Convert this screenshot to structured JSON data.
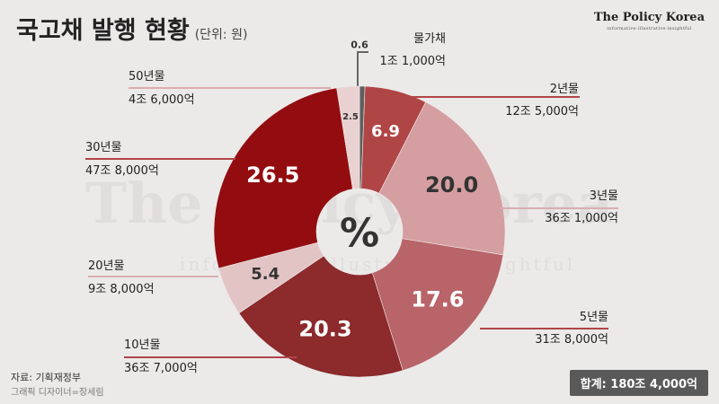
{
  "title": "국고채 발행 현황",
  "unit": "(단위: 원)",
  "brand": {
    "name": "The Policy Korea",
    "tagline": "informative·illustrative·insightful"
  },
  "watermark": {
    "name": "The Policy Korea",
    "tagline": "informative·illustrative·insightful"
  },
  "center_symbol": "%",
  "source": "자료: 기획재정부",
  "credit": "그래픽 디자이너=장세림",
  "total": "합계: 180조 4,000억",
  "colors": {
    "background": "#ece9e9",
    "slices": [
      "#5f5f5f",
      "#b04545",
      "#d59ea1",
      "#b86468",
      "#8c2a2c",
      "#e3c4c4",
      "#930d10",
      "#e9d1d1"
    ],
    "leader": "#b04548"
  },
  "chart_data": {
    "type": "pie",
    "donut": true,
    "categories": [
      "물가채",
      "2년물",
      "3년물",
      "5년물",
      "10년물",
      "20년물",
      "30년물",
      "50년물"
    ],
    "values": [
      0.6,
      6.9,
      20.0,
      17.6,
      20.3,
      5.4,
      26.5,
      2.5
    ],
    "value_labels": [
      "0.6",
      "6.9",
      "20.0",
      "17.6",
      "20.3",
      "5.4",
      "26.5",
      "2.5"
    ],
    "amounts": [
      "1조 1,000억",
      "12조 5,000억",
      "36조 1,000억",
      "31조 8,000억",
      "36조 7,000억",
      "9조 8,000억",
      "47조 8,000억",
      "4조 6,000억"
    ]
  }
}
